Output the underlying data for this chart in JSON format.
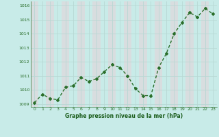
{
  "x": [
    0,
    1,
    2,
    3,
    4,
    5,
    6,
    7,
    8,
    9,
    10,
    11,
    12,
    13,
    14,
    15,
    16,
    17,
    18,
    19,
    20,
    21,
    22,
    23
  ],
  "y": [
    1009.1,
    1009.7,
    1009.4,
    1009.3,
    1010.2,
    1010.3,
    1010.9,
    1010.6,
    1010.8,
    1011.3,
    1011.8,
    1011.6,
    1011.0,
    1010.1,
    1009.6,
    1009.6,
    1011.6,
    1012.6,
    1014.0,
    1014.8,
    1015.5,
    1015.2,
    1015.8,
    1015.4
  ],
  "line_color": "#2a6e2a",
  "marker": "D",
  "marker_size": 2.0,
  "bg_color": "#c8ebe8",
  "grid_color": "#b8d8d4",
  "xlabel": "Graphe pression niveau de la mer (hPa)",
  "xlabel_color": "#1a5c1a",
  "tick_color": "#2a6e2a",
  "ylim": [
    1008.8,
    1016.3
  ],
  "yticks": [
    1009,
    1010,
    1011,
    1012,
    1013,
    1014,
    1015,
    1016
  ],
  "xlim": [
    -0.5,
    23.5
  ],
  "xticks": [
    0,
    1,
    2,
    3,
    4,
    5,
    6,
    7,
    8,
    9,
    10,
    11,
    12,
    13,
    14,
    15,
    16,
    17,
    18,
    19,
    20,
    21,
    22,
    23
  ],
  "linewidth": 1.0
}
